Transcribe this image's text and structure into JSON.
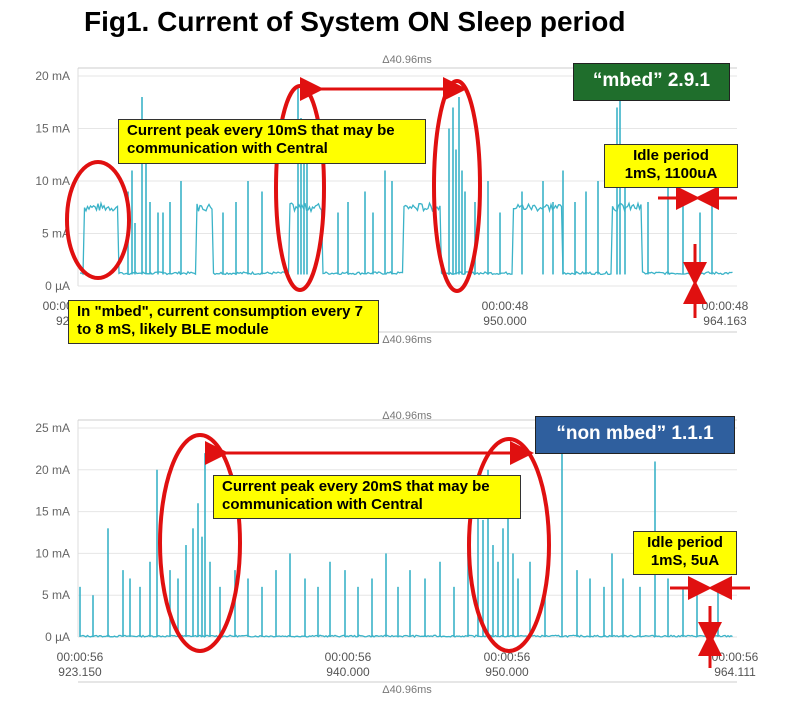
{
  "title": "Fig1. Current of System ON Sleep period",
  "colors": {
    "trace": "#3bb3c8",
    "annotation_fill": "#ffff00",
    "circle": "#e01010",
    "arrow": "#e01010",
    "mbed_badge": "#1f6e2c",
    "non_mbed_badge": "#2f5f9e"
  },
  "chart_data": [
    {
      "type": "line",
      "version_label": "“mbed” 2.9.1",
      "span_label": "Δ40.96ms",
      "y_ticks": [
        "20 mA",
        "15 mA",
        "10 mA",
        "5 mA",
        "0 µA"
      ],
      "ylim_mA": [
        0,
        20
      ],
      "x_ticks": [
        {
          "time": "00:00:56",
          "ms": "923"
        },
        {
          "time": "00:00:48",
          "ms": "950.000"
        },
        {
          "time": "00:00:48",
          "ms": "964.163"
        }
      ],
      "grid": true,
      "description_boxes": [
        "Current peak every 10mS that may be communication with Central",
        "In \"mbed\", current consumption every 7 to 8 mS, likely BLE module"
      ],
      "idle_box": [
        "Idle period",
        "1mS, 1100uA"
      ],
      "idle_current_mA": 1.1,
      "active_plateau_mA": 7.5,
      "peak_interval_ms": 10
    },
    {
      "type": "line",
      "version_label": "“non mbed” 1.1.1",
      "span_label": "Δ40.96ms",
      "y_ticks": [
        "25 mA",
        "20 mA",
        "15 mA",
        "10 mA",
        "5 mA",
        "0 µA"
      ],
      "ylim_mA": [
        0,
        25
      ],
      "x_ticks": [
        {
          "time": "00:00:56",
          "ms": "923.150"
        },
        {
          "time": "00:00:56",
          "ms": "940.000"
        },
        {
          "time": "00:00:56",
          "ms": "950.000"
        },
        {
          "time": "00:00:56",
          "ms": "964.111"
        }
      ],
      "grid": true,
      "description_boxes": [
        "Current peak every 20mS that may be communication with Central"
      ],
      "idle_box": [
        "Idle period",
        "1mS, 5uA"
      ],
      "idle_current_mA": 0.005,
      "peak_interval_ms": 20
    }
  ]
}
